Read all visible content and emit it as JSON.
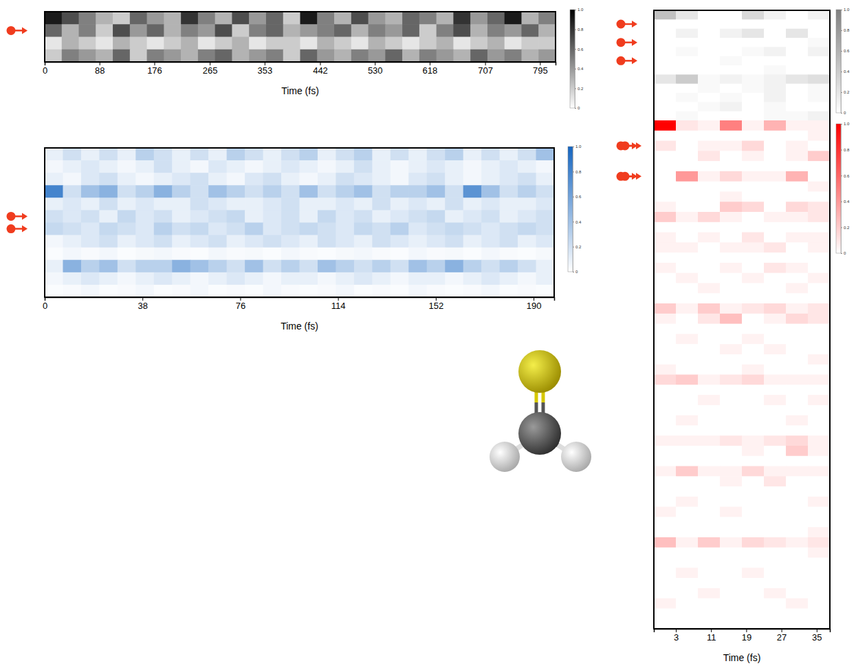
{
  "chart_data": [
    {
      "type": "heatmap",
      "color": "#000000",
      "x_label": "Time (fs)",
      "tick_labels": "x",
      "xlim": [
        0,
        820
      ],
      "xticks": [
        0,
        88,
        176,
        265,
        353,
        442,
        530,
        618,
        707,
        795
      ],
      "colorbar": {
        "range": [
          0,
          1
        ],
        "ticks": [
          0,
          0.2,
          0.4,
          0.6,
          0.8,
          {
            "value": 1,
            "label": "1.0"
          }
        ]
      },
      "cells": [
        [
          0.9,
          0.7,
          0.5,
          0.3,
          0.2,
          0.6,
          0.4,
          0.3,
          0.8,
          0.5,
          0.3,
          0.7,
          0.4,
          0.6,
          0.2,
          0.9,
          0.5,
          0.3,
          0.7,
          0.4,
          0.3,
          0.6,
          0.5,
          0.3,
          0.8,
          0.4,
          0.6,
          0.9,
          0.3,
          0.5
        ],
        [
          0.6,
          0.3,
          0.5,
          0.2,
          0.7,
          0.4,
          0.6,
          0.3,
          0.5,
          0.4,
          0.7,
          0.2,
          0.5,
          0.6,
          0.3,
          0.4,
          0.5,
          0.6,
          0.3,
          0.5,
          0.4,
          0.6,
          0.2,
          0.5,
          0.7,
          0.3,
          0.5,
          0.4,
          0.6,
          0.3
        ],
        [
          0.1,
          0.3,
          0.2,
          0.1,
          0.3,
          0.2,
          0.1,
          0.2,
          0.3,
          0.1,
          0.2,
          0.3,
          0.1,
          0.2,
          0.2,
          0.1,
          0.3,
          0.2,
          0.1,
          0.3,
          0.2,
          0.1,
          0.2,
          0.3,
          0.1,
          0.2,
          0.3,
          0.1,
          0.2,
          0.2
        ],
        [
          0.2,
          0.5,
          0.4,
          0.3,
          0.6,
          0.2,
          0.5,
          0.4,
          0.3,
          0.5,
          0.6,
          0.3,
          0.4,
          0.5,
          0.2,
          0.6,
          0.4,
          0.3,
          0.5,
          0.4,
          0.6,
          0.3,
          0.5,
          0.4,
          0.3,
          0.6,
          0.4,
          0.5,
          0.3,
          0.4
        ]
      ]
    },
    {
      "type": "heatmap",
      "color": "#1565c0",
      "x_label": "Time (fs)",
      "tick_labels": "x",
      "xlim": [
        0,
        198
      ],
      "xticks": [
        0,
        38,
        76,
        114,
        152,
        190
      ],
      "colorbar": {
        "range": [
          0,
          1
        ],
        "ticks": [
          0,
          0.2,
          0.4,
          0.6,
          0.8,
          {
            "value": 1,
            "label": "1.0"
          }
        ]
      },
      "cells": [
        [
          0.1,
          0.2,
          0.1,
          0.2,
          0.1,
          0.3,
          0.2,
          0.1,
          0.2,
          0.1,
          0.3,
          0.2,
          0.1,
          0.2,
          0.3,
          0.1,
          0.2,
          0.3,
          0.1,
          0.2,
          0.1,
          0.2,
          0.3,
          0.1,
          0.2,
          0.1,
          0.2,
          0.4
        ],
        [
          0.05,
          0.1,
          0.15,
          0.1,
          0.05,
          0.1,
          0.2,
          0.1,
          0.05,
          0.15,
          0.1,
          0.05,
          0.1,
          0.15,
          0.1,
          0.05,
          0.1,
          0.2,
          0.1,
          0.05,
          0.1,
          0.15,
          0.1,
          0.05,
          0.1,
          0.15,
          0.1,
          0.05
        ],
        [
          0.1,
          0.05,
          0.15,
          0.2,
          0.1,
          0.05,
          0.1,
          0.15,
          0.2,
          0.1,
          0.05,
          0.15,
          0.2,
          0.1,
          0.05,
          0.1,
          0.2,
          0.15,
          0.1,
          0.05,
          0.15,
          0.2,
          0.1,
          0.05,
          0.1,
          0.15,
          0.2,
          0.1
        ],
        [
          0.8,
          0.2,
          0.4,
          0.5,
          0.2,
          0.3,
          0.5,
          0.3,
          0.2,
          0.4,
          0.3,
          0.2,
          0.3,
          0.2,
          0.4,
          0.2,
          0.3,
          0.4,
          0.2,
          0.3,
          0.3,
          0.4,
          0.2,
          0.7,
          0.4,
          0.2,
          0.3,
          0.2
        ],
        [
          0.1,
          0.15,
          0.1,
          0.2,
          0.1,
          0.15,
          0.1,
          0.1,
          0.2,
          0.15,
          0.1,
          0.1,
          0.15,
          0.2,
          0.1,
          0.1,
          0.15,
          0.1,
          0.2,
          0.1,
          0.15,
          0.1,
          0.2,
          0.1,
          0.15,
          0.1,
          0.1,
          0.15
        ],
        [
          0.2,
          0.15,
          0.2,
          0.1,
          0.25,
          0.15,
          0.2,
          0.1,
          0.15,
          0.2,
          0.25,
          0.1,
          0.15,
          0.2,
          0.1,
          0.25,
          0.15,
          0.2,
          0.1,
          0.15,
          0.2,
          0.25,
          0.1,
          0.15,
          0.2,
          0.1,
          0.15,
          0.2
        ],
        [
          0.25,
          0.2,
          0.15,
          0.25,
          0.2,
          0.15,
          0.3,
          0.2,
          0.25,
          0.15,
          0.2,
          0.3,
          0.15,
          0.2,
          0.25,
          0.2,
          0.15,
          0.25,
          0.2,
          0.3,
          0.15,
          0.2,
          0.25,
          0.2,
          0.15,
          0.2,
          0.25,
          0.2
        ],
        [
          0.05,
          0.1,
          0.15,
          0.2,
          0.1,
          0.15,
          0.2,
          0.1,
          0.15,
          0.2,
          0.1,
          0.15,
          0.2,
          0.15,
          0.1,
          0.2,
          0.15,
          0.1,
          0.2,
          0.15,
          0.1,
          0.15,
          0.2,
          0.1,
          0.15,
          0.2,
          0.1,
          0.15
        ],
        [
          0.02,
          0.05,
          0.03,
          0.05,
          0.02,
          0.04,
          0.05,
          0.03,
          0.02,
          0.05,
          0.03,
          0.04,
          0.02,
          0.05,
          0.03,
          0.02,
          0.04,
          0.05,
          0.03,
          0.02,
          0.05,
          0.03,
          0.04,
          0.02,
          0.05,
          0.03,
          0.02,
          0.04
        ],
        [
          0.1,
          0.5,
          0.3,
          0.4,
          0.2,
          0.3,
          0.3,
          0.5,
          0.4,
          0.3,
          0.2,
          0.4,
          0.2,
          0.3,
          0.2,
          0.4,
          0.3,
          0.2,
          0.3,
          0.2,
          0.4,
          0.3,
          0.5,
          0.3,
          0.2,
          0.3,
          0.2,
          0.1
        ],
        [
          0.05,
          0.1,
          0.15,
          0.1,
          0.05,
          0.1,
          0.15,
          0.1,
          0.05,
          0.1,
          0.15,
          0.1,
          0.05,
          0.1,
          0.1,
          0.05,
          0.1,
          0.15,
          0.1,
          0.05,
          0.1,
          0.1,
          0.05,
          0.1,
          0.15,
          0.1,
          0.05,
          0.1
        ],
        [
          0.02,
          0.03,
          0.05,
          0.02,
          0.03,
          0.05,
          0.02,
          0.03,
          0.05,
          0.02,
          0.03,
          0.02,
          0.05,
          0.03,
          0.02,
          0.03,
          0.05,
          0.02,
          0.03,
          0.02,
          0.05,
          0.03,
          0.02,
          0.03,
          0.05,
          0.02,
          0.03,
          0.02
        ]
      ]
    },
    {
      "type": "heatmap",
      "color": "#808080",
      "tick_labels": false,
      "xlim": [
        -2,
        38
      ],
      "colorbar": {
        "range": [
          0,
          1
        ],
        "ticks": [
          0,
          0.2,
          0.4,
          0.6,
          0.8,
          {
            "value": 1,
            "label": "1.0"
          }
        ]
      },
      "cells": [
        [
          0.5,
          0.2,
          0,
          0,
          0.3,
          0.1,
          0,
          0.1
        ],
        [
          0,
          0,
          0,
          0,
          0,
          0,
          0,
          0
        ],
        [
          0,
          0.1,
          0,
          0.1,
          0.2,
          0,
          0.2,
          0
        ],
        [
          0,
          0,
          0,
          0,
          0,
          0,
          0,
          0.05
        ],
        [
          0,
          0.05,
          0,
          0,
          0.05,
          0.1,
          0,
          0.1
        ],
        [
          0,
          0,
          0,
          0.05,
          0,
          0,
          0,
          0
        ],
        [
          0,
          0,
          0,
          0,
          0,
          0.05,
          0,
          0
        ],
        [
          0.2,
          0.4,
          0.05,
          0.1,
          0.05,
          0.1,
          0.2,
          0.25
        ],
        [
          0,
          0,
          0.05,
          0,
          0.05,
          0.1,
          0,
          0.05
        ],
        [
          0,
          0.05,
          0,
          0.05,
          0,
          0.1,
          0,
          0.05
        ],
        [
          0,
          0,
          0.05,
          0.1,
          0,
          0.05,
          0,
          0
        ],
        [
          0,
          0.05,
          0,
          0,
          0,
          0.05,
          0.05,
          0.1
        ]
      ]
    },
    {
      "type": "heatmap",
      "color": "#ff0000",
      "x_label": "Time (fs)",
      "tick_labels": "x",
      "xlim": [
        -2,
        38
      ],
      "xticks": [
        3,
        11,
        19,
        27,
        35
      ],
      "colorbar": {
        "range": [
          0,
          1
        ],
        "ticks": [
          0,
          0.2,
          0.4,
          0.6,
          0.8,
          {
            "value": 1,
            "label": "1.0"
          }
        ]
      },
      "cells": [
        [
          1,
          0.1,
          0.05,
          0.5,
          0.05,
          0.3,
          0.05,
          0.05
        ],
        [
          0,
          0,
          0,
          0,
          0,
          0,
          0,
          0.05
        ],
        [
          0.1,
          0,
          0.05,
          0.05,
          0.15,
          0,
          0.05,
          0
        ],
        [
          0,
          0,
          0.1,
          0,
          0.05,
          0,
          0.05,
          0.2
        ],
        [
          0,
          0,
          0,
          0,
          0,
          0,
          0,
          0
        ],
        [
          0,
          0.4,
          0.05,
          0.15,
          0.05,
          0.05,
          0.3,
          0
        ],
        [
          0,
          0,
          0,
          0,
          0,
          0,
          0,
          0.05
        ],
        [
          0,
          0,
          0,
          0.05,
          0,
          0,
          0,
          0
        ],
        [
          0.05,
          0,
          0,
          0.2,
          0.15,
          0,
          0.15,
          0.1
        ],
        [
          0.2,
          0.05,
          0.15,
          0.05,
          0,
          0.05,
          0.05,
          0.1
        ],
        [
          0,
          0,
          0,
          0,
          0,
          0,
          0,
          0
        ],
        [
          0.05,
          0,
          0.05,
          0,
          0.1,
          0,
          0.05,
          0.05
        ],
        [
          0.05,
          0.05,
          0,
          0.05,
          0.05,
          0.1,
          0,
          0.05
        ],
        [
          0,
          0,
          0,
          0,
          0,
          0,
          0,
          0
        ],
        [
          0.05,
          0,
          0,
          0.05,
          0,
          0.1,
          0.05,
          0
        ],
        [
          0,
          0.05,
          0,
          0,
          0.05,
          0,
          0,
          0.05
        ],
        [
          0,
          0,
          0.05,
          0,
          0,
          0,
          0.05,
          0
        ],
        [
          0,
          0,
          0,
          0,
          0,
          0,
          0,
          0
        ],
        [
          0.2,
          0.05,
          0.2,
          0.05,
          0.1,
          0.15,
          0.05,
          0.1
        ],
        [
          0.05,
          0,
          0.1,
          0.25,
          0,
          0.05,
          0.15,
          0.1
        ],
        [
          0,
          0,
          0,
          0,
          0,
          0,
          0,
          0
        ],
        [
          0,
          0.05,
          0,
          0,
          0.05,
          0,
          0,
          0
        ],
        [
          0,
          0,
          0,
          0.05,
          0,
          0.05,
          0,
          0
        ],
        [
          0,
          0,
          0,
          0,
          0,
          0,
          0,
          0.05
        ],
        [
          0.05,
          0,
          0,
          0,
          0.05,
          0,
          0,
          0
        ],
        [
          0.15,
          0.2,
          0.05,
          0.1,
          0.15,
          0.05,
          0.05,
          0.05
        ],
        [
          0,
          0,
          0,
          0,
          0,
          0,
          0,
          0
        ],
        [
          0,
          0,
          0.05,
          0,
          0,
          0.05,
          0,
          0.05
        ],
        [
          0,
          0,
          0,
          0,
          0,
          0,
          0,
          0
        ],
        [
          0,
          0.05,
          0,
          0,
          0,
          0,
          0.05,
          0
        ],
        [
          0,
          0,
          0,
          0,
          0,
          0,
          0,
          0
        ],
        [
          0.05,
          0.05,
          0.05,
          0.1,
          0.05,
          0.1,
          0.15,
          0.05
        ],
        [
          0,
          0,
          0,
          0,
          0.05,
          0,
          0.2,
          0.05
        ],
        [
          0,
          0,
          0,
          0,
          0,
          0,
          0,
          0
        ],
        [
          0.05,
          0.2,
          0.05,
          0.05,
          0.15,
          0.05,
          0.05,
          0.05
        ],
        [
          0,
          0,
          0,
          0.05,
          0,
          0.1,
          0,
          0
        ],
        [
          0,
          0,
          0,
          0,
          0,
          0,
          0,
          0
        ],
        [
          0,
          0.05,
          0,
          0,
          0,
          0,
          0,
          0.05
        ],
        [
          0.05,
          0,
          0,
          0.05,
          0,
          0,
          0,
          0
        ],
        [
          0,
          0,
          0,
          0,
          0,
          0,
          0,
          0
        ],
        [
          0,
          0,
          0,
          0,
          0,
          0,
          0,
          0.05
        ],
        [
          0.25,
          0.05,
          0.2,
          0.05,
          0.15,
          0.1,
          0.05,
          0.1
        ],
        [
          0,
          0,
          0,
          0,
          0,
          0,
          0,
          0.05
        ],
        [
          0,
          0,
          0,
          0,
          0,
          0,
          0,
          0
        ],
        [
          0,
          0.05,
          0,
          0,
          0.05,
          0,
          0,
          0
        ],
        [
          0,
          0,
          0,
          0,
          0,
          0,
          0,
          0
        ],
        [
          0,
          0,
          0.05,
          0,
          0,
          0.05,
          0,
          0
        ],
        [
          0.05,
          0,
          0,
          0,
          0,
          0,
          0.05,
          0
        ],
        [
          0,
          0,
          0,
          0,
          0,
          0,
          0,
          0
        ],
        [
          0,
          0,
          0,
          0,
          0,
          0,
          0,
          0
        ]
      ]
    }
  ]
}
